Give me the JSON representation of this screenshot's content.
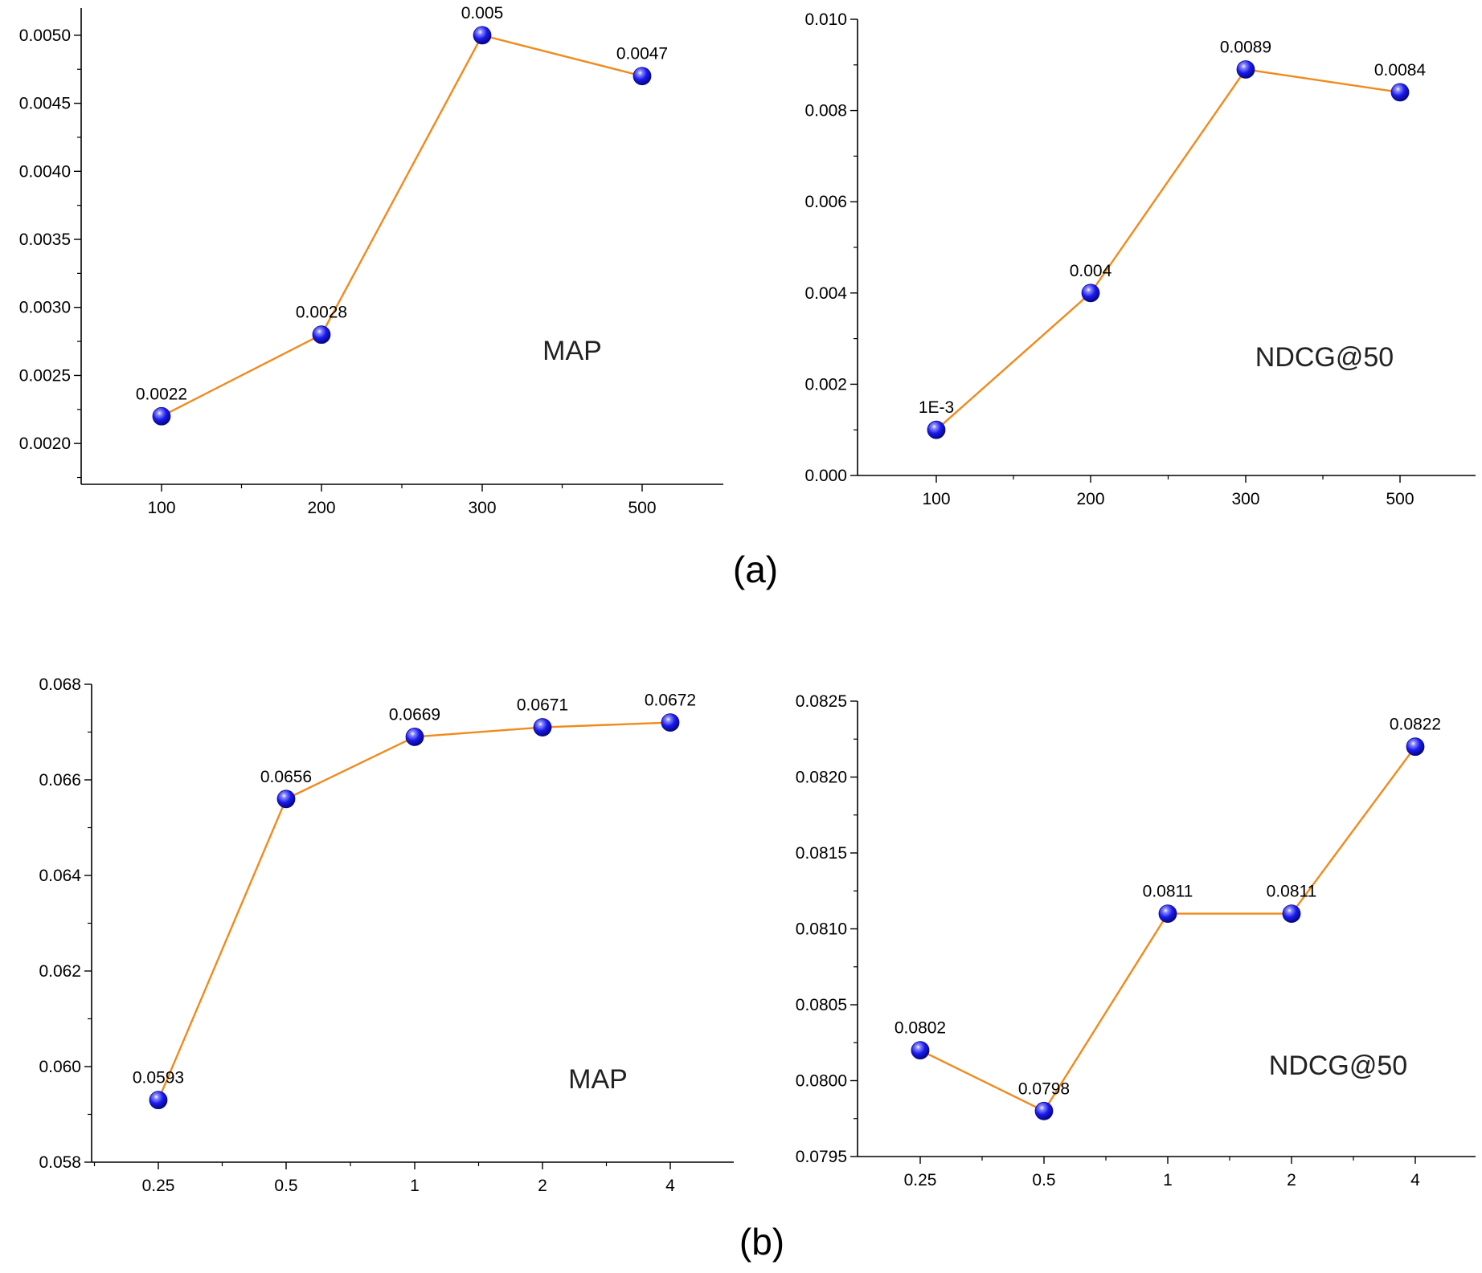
{
  "panel_labels": [
    "(a)",
    "(b)"
  ],
  "chart_data": [
    {
      "type": "line",
      "title": "",
      "annotation": "MAP",
      "xlabel": "",
      "ylabel": "",
      "categories": [
        "100",
        "200",
        "300",
        "500"
      ],
      "values": [
        0.0022,
        0.0028,
        0.005,
        0.0047
      ],
      "data_labels": [
        "0.0022",
        "0.0028",
        "0.005",
        "0.0047"
      ],
      "ylim": [
        0.0017,
        0.0052
      ],
      "yticks": [
        0.002,
        0.0025,
        0.003,
        0.0035,
        0.004,
        0.0045,
        0.005
      ],
      "ytick_labels": [
        "0.0020",
        "0.0025",
        "0.0030",
        "0.0035",
        "0.0040",
        "0.0045",
        "0.0050"
      ],
      "grid": false,
      "line_color": "#f08a1c",
      "marker_color": "#1a1aee"
    },
    {
      "type": "line",
      "title": "",
      "annotation": "NDCG@50",
      "xlabel": "",
      "ylabel": "",
      "categories": [
        "100",
        "200",
        "300",
        "500"
      ],
      "values": [
        0.001,
        0.004,
        0.0089,
        0.0084
      ],
      "data_labels": [
        "1E-3",
        "0.004",
        "0.0089",
        "0.0084"
      ],
      "ylim": [
        0,
        0.01
      ],
      "yticks": [
        0,
        0.002,
        0.004,
        0.006,
        0.008,
        0.01
      ],
      "ytick_labels": [
        "0.000",
        "0.002",
        "0.004",
        "0.006",
        "0.008",
        "0.010"
      ],
      "grid": false,
      "line_color": "#f08a1c",
      "marker_color": "#1a1aee"
    },
    {
      "type": "line",
      "title": "",
      "annotation": "MAP",
      "xlabel": "",
      "ylabel": "",
      "categories": [
        "0.25",
        "0.5",
        "1",
        "2",
        "4"
      ],
      "values": [
        0.0593,
        0.0656,
        0.0669,
        0.0671,
        0.0672
      ],
      "data_labels": [
        "0.0593",
        "0.0656",
        "0.0669",
        "0.0671",
        "0.0672"
      ],
      "ylim": [
        0.058,
        0.068
      ],
      "yticks": [
        0.058,
        0.06,
        0.062,
        0.064,
        0.066,
        0.068
      ],
      "ytick_labels": [
        "0.058",
        "0.060",
        "0.062",
        "0.064",
        "0.066",
        "0.068"
      ],
      "grid": false,
      "line_color": "#f08a1c",
      "marker_color": "#1a1aee"
    },
    {
      "type": "line",
      "title": "",
      "annotation": "NDCG@50",
      "xlabel": "",
      "ylabel": "",
      "categories": [
        "0.25",
        "0.5",
        "1",
        "2",
        "4"
      ],
      "values": [
        0.0802,
        0.0798,
        0.0811,
        0.0811,
        0.0822
      ],
      "data_labels": [
        "0.0802",
        "0.0798",
        "0.0811",
        "0.0811",
        "0.0822"
      ],
      "ylim": [
        0.0795,
        0.0825
      ],
      "yticks": [
        0.0795,
        0.08,
        0.0805,
        0.081,
        0.0815,
        0.082,
        0.0825
      ],
      "ytick_labels": [
        "0.0795",
        "0.0800",
        "0.0805",
        "0.0810",
        "0.0815",
        "0.0820",
        "0.0825"
      ],
      "grid": false,
      "line_color": "#f08a1c",
      "marker_color": "#1a1aee"
    }
  ]
}
